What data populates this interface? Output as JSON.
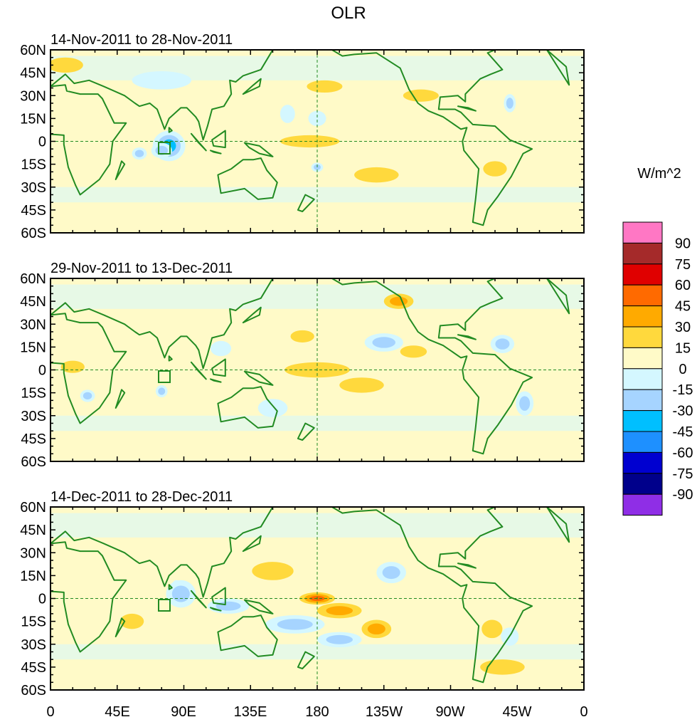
{
  "title": "OLR",
  "units_label": "W/m^2",
  "panels": [
    {
      "period": "14-Nov-2011 to 28-Nov-2011"
    },
    {
      "period": "29-Nov-2011 to 13-Dec-2011"
    },
    {
      "period": "14-Dec-2011 to 28-Dec-2011"
    }
  ],
  "lat_labels": [
    "60N",
    "45N",
    "30N",
    "15N",
    "0",
    "15S",
    "30S",
    "45S",
    "60S"
  ],
  "lon_labels": [
    "0",
    "45E",
    "90E",
    "135E",
    "180",
    "135W",
    "90W",
    "45W",
    "0"
  ],
  "colorbar": {
    "colors": [
      "#ff77c4",
      "#a52a2a",
      "#e00000",
      "#ff6a00",
      "#ffaa00",
      "#ffd93d",
      "#fffac8",
      "#d4f7ff",
      "#a6d4ff",
      "#00bfff",
      "#1e90ff",
      "#0000d0",
      "#00008b",
      "#8f2ee6"
    ],
    "labels": [
      "90",
      "75",
      "60",
      "45",
      "30",
      "15",
      "0",
      "-15",
      "-30",
      "-45",
      "-60",
      "-75",
      "-90"
    ]
  },
  "features": {
    "panel0": [
      {
        "lon": 80,
        "lat": -3,
        "level": -3,
        "rx": 11,
        "ry": 10
      },
      {
        "lon": 75,
        "lat": -6,
        "level": -2,
        "rx": 7,
        "ry": 5
      },
      {
        "lon": 60,
        "lat": -8,
        "level": -2,
        "rx": 5,
        "ry": 4
      },
      {
        "lon": 180,
        "lat": -17,
        "level": -2,
        "rx": 4,
        "ry": 3
      },
      {
        "lon": 160,
        "lat": 18,
        "level": -1,
        "rx": 5,
        "ry": 6
      },
      {
        "lon": 180,
        "lat": 15,
        "level": -1,
        "rx": 6,
        "ry": 5
      },
      {
        "lon": 310,
        "lat": 25,
        "level": -2,
        "rx": 4,
        "ry": 6
      },
      {
        "lon": 75,
        "lat": 40,
        "level": -1,
        "rx": 20,
        "ry": 6
      },
      {
        "lon": 10,
        "lat": 50,
        "level": 1,
        "rx": 12,
        "ry": 5
      },
      {
        "lon": 185,
        "lat": 36,
        "level": 1,
        "rx": 12,
        "ry": 4
      },
      {
        "lon": 250,
        "lat": 30,
        "level": 1,
        "rx": 12,
        "ry": 4
      },
      {
        "lon": 175,
        "lat": 0,
        "level": 1,
        "rx": 20,
        "ry": 4
      },
      {
        "lon": 220,
        "lat": -22,
        "level": 1,
        "rx": 15,
        "ry": 5
      },
      {
        "lon": 300,
        "lat": -18,
        "level": 1,
        "rx": 8,
        "ry": 5
      }
    ],
    "panel1": [
      {
        "lon": 225,
        "lat": 18,
        "level": -2,
        "rx": 13,
        "ry": 6
      },
      {
        "lon": 305,
        "lat": 17,
        "level": -2,
        "rx": 8,
        "ry": 6
      },
      {
        "lon": 115,
        "lat": 14,
        "level": -1,
        "rx": 7,
        "ry": 5
      },
      {
        "lon": 25,
        "lat": -17,
        "level": -2,
        "rx": 5,
        "ry": 4
      },
      {
        "lon": 150,
        "lat": -25,
        "level": -1,
        "rx": 10,
        "ry": 6
      },
      {
        "lon": 320,
        "lat": -22,
        "level": -2,
        "rx": 6,
        "ry": 8
      },
      {
        "lon": 75,
        "lat": -14,
        "level": -2,
        "rx": 4,
        "ry": 4
      },
      {
        "lon": 235,
        "lat": 45,
        "level": 2,
        "rx": 10,
        "ry": 5
      },
      {
        "lon": 180,
        "lat": 0,
        "level": 1,
        "rx": 22,
        "ry": 5
      },
      {
        "lon": 210,
        "lat": -10,
        "level": 1,
        "rx": 15,
        "ry": 5
      },
      {
        "lon": 15,
        "lat": 2,
        "level": 1,
        "rx": 8,
        "ry": 4
      },
      {
        "lon": 245,
        "lat": 12,
        "level": 1,
        "rx": 9,
        "ry": 4
      },
      {
        "lon": 170,
        "lat": 22,
        "level": 1,
        "rx": 8,
        "ry": 4
      }
    ],
    "panel2": [
      {
        "lon": 85,
        "lat": 8,
        "level": -4,
        "rx": 3,
        "ry": 4
      },
      {
        "lon": 88,
        "lat": 3,
        "level": -2,
        "rx": 10,
        "ry": 9
      },
      {
        "lon": 120,
        "lat": -5,
        "level": -2,
        "rx": 14,
        "ry": 5
      },
      {
        "lon": 165,
        "lat": -17,
        "level": -2,
        "rx": 20,
        "ry": 6
      },
      {
        "lon": 195,
        "lat": -27,
        "level": -2,
        "rx": 15,
        "ry": 5
      },
      {
        "lon": 230,
        "lat": 17,
        "level": -2,
        "rx": 10,
        "ry": 7
      },
      {
        "lon": 310,
        "lat": -25,
        "level": -1,
        "rx": 6,
        "ry": 6
      },
      {
        "lon": 180,
        "lat": 0,
        "level": 3,
        "rx": 12,
        "ry": 4
      },
      {
        "lon": 195,
        "lat": -8,
        "level": 2,
        "rx": 15,
        "ry": 5
      },
      {
        "lon": 220,
        "lat": -20,
        "level": 2,
        "rx": 10,
        "ry": 6
      },
      {
        "lon": 305,
        "lat": -45,
        "level": 1,
        "rx": 15,
        "ry": 5
      },
      {
        "lon": 298,
        "lat": -20,
        "level": 1,
        "rx": 7,
        "ry": 6
      },
      {
        "lon": 150,
        "lat": 18,
        "level": 1,
        "rx": 14,
        "ry": 6
      },
      {
        "lon": 55,
        "lat": -15,
        "level": 1,
        "rx": 8,
        "ry": 5
      }
    ]
  }
}
